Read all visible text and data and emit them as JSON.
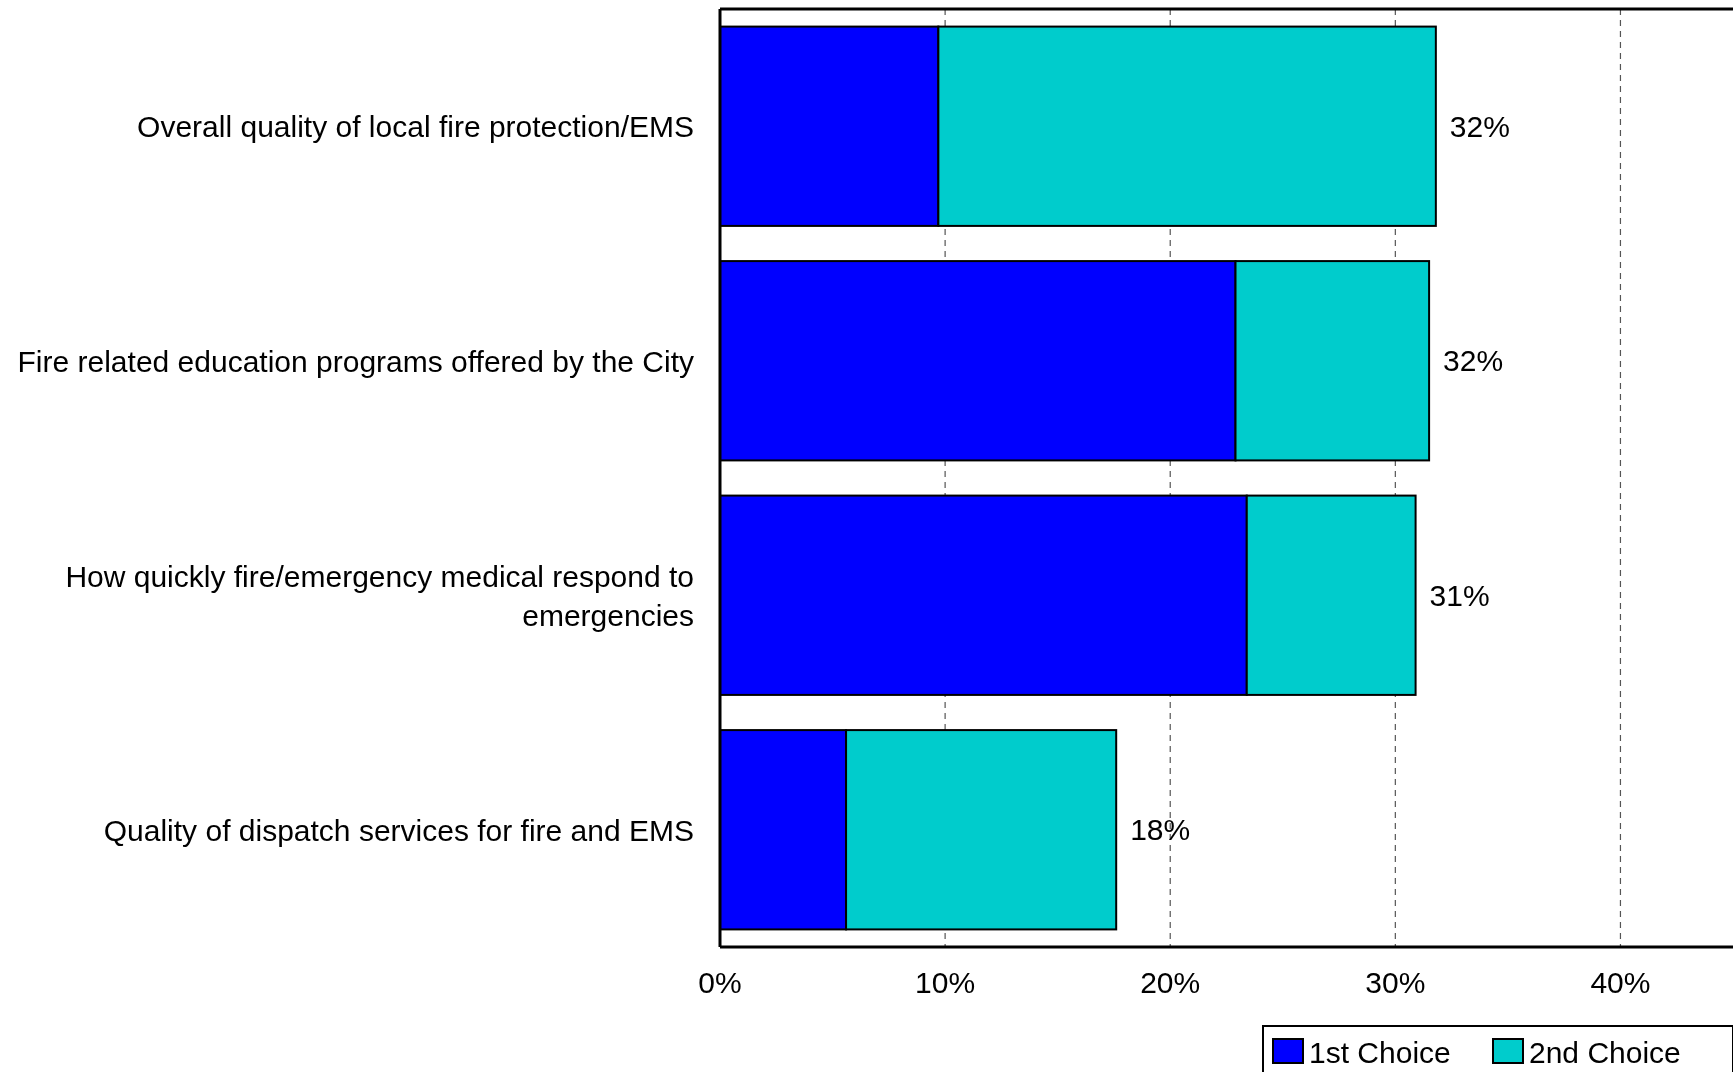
{
  "chart_data": {
    "type": "bar",
    "orientation": "horizontal",
    "stacked": true,
    "categories": [
      "Overall quality of local fire protection/EMS",
      "Fire related education programs offered by the City",
      "How quickly fire/emergency medical respond to emergencies",
      "Quality of dispatch services for fire and EMS"
    ],
    "series": [
      {
        "name": "1st Choice",
        "color": "#0000ff",
        "values": [
          9.7,
          22.9,
          23.4,
          5.6
        ]
      },
      {
        "name": "2nd Choice",
        "color": "#00cccc",
        "values": [
          22.1,
          8.6,
          7.5,
          12.0
        ]
      }
    ],
    "totals": [
      "32%",
      "32%",
      "31%",
      "18%"
    ],
    "xlim": [
      0,
      45
    ],
    "xticks": [
      {
        "value": 0,
        "label": "0%"
      },
      {
        "value": 10,
        "label": "10%"
      },
      {
        "value": 20,
        "label": "20%"
      },
      {
        "value": 30,
        "label": "30%"
      },
      {
        "value": 40,
        "label": "40%"
      }
    ],
    "grid": "x",
    "legend": "bottom right"
  }
}
